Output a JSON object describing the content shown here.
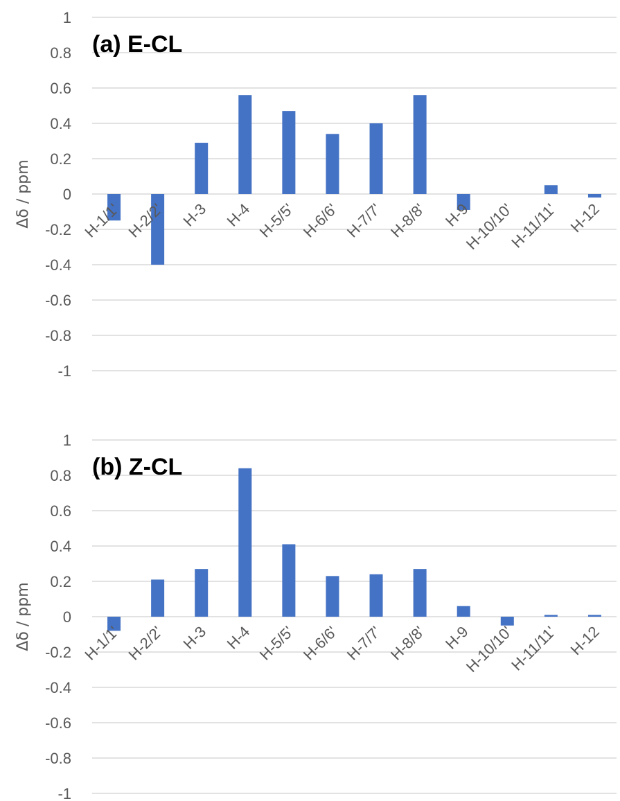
{
  "colors": {
    "bar": "#4472c4",
    "grid": "#d9d9d9",
    "text": "#595959"
  },
  "chart_data": [
    {
      "type": "bar",
      "title": "(a) E-CL",
      "xlabel": "",
      "ylabel": "Δδ / ppm",
      "ylim": [
        -1,
        1
      ],
      "yticks": [
        1,
        0.8,
        0.6,
        0.4,
        0.2,
        0,
        -0.2,
        -0.4,
        -0.6,
        -0.8,
        -1
      ],
      "grid": true,
      "categories": [
        "H-1/1'",
        "H-2/2'",
        "H-3",
        "H-4",
        "H-5/5'",
        "H-6/6'",
        "H-7/7'",
        "H-8/8'",
        "H-9",
        "H-10/10'",
        "H-11/11'",
        "H-12"
      ],
      "values": [
        -0.15,
        -0.4,
        0.29,
        0.56,
        0.47,
        0.34,
        0.4,
        0.56,
        -0.09,
        0.0,
        0.05,
        -0.02
      ]
    },
    {
      "type": "bar",
      "title": "(b) Z-CL",
      "xlabel": "",
      "ylabel": "Δδ / ppm",
      "ylim": [
        -1,
        1
      ],
      "yticks": [
        1,
        0.8,
        0.6,
        0.4,
        0.2,
        0,
        -0.2,
        -0.4,
        -0.6,
        -0.8,
        -1
      ],
      "grid": true,
      "categories": [
        "H-1/1'",
        "H-2/2'",
        "H-3",
        "H-4",
        "H-5/5'",
        "H-6/6'",
        "H-7/7'",
        "H-8/8'",
        "H-9",
        "H-10/10'",
        "H-11/11'",
        "H-12"
      ],
      "values": [
        -0.08,
        0.21,
        0.27,
        0.84,
        0.41,
        0.23,
        0.24,
        0.27,
        0.06,
        -0.05,
        0.01,
        0.01
      ]
    }
  ]
}
